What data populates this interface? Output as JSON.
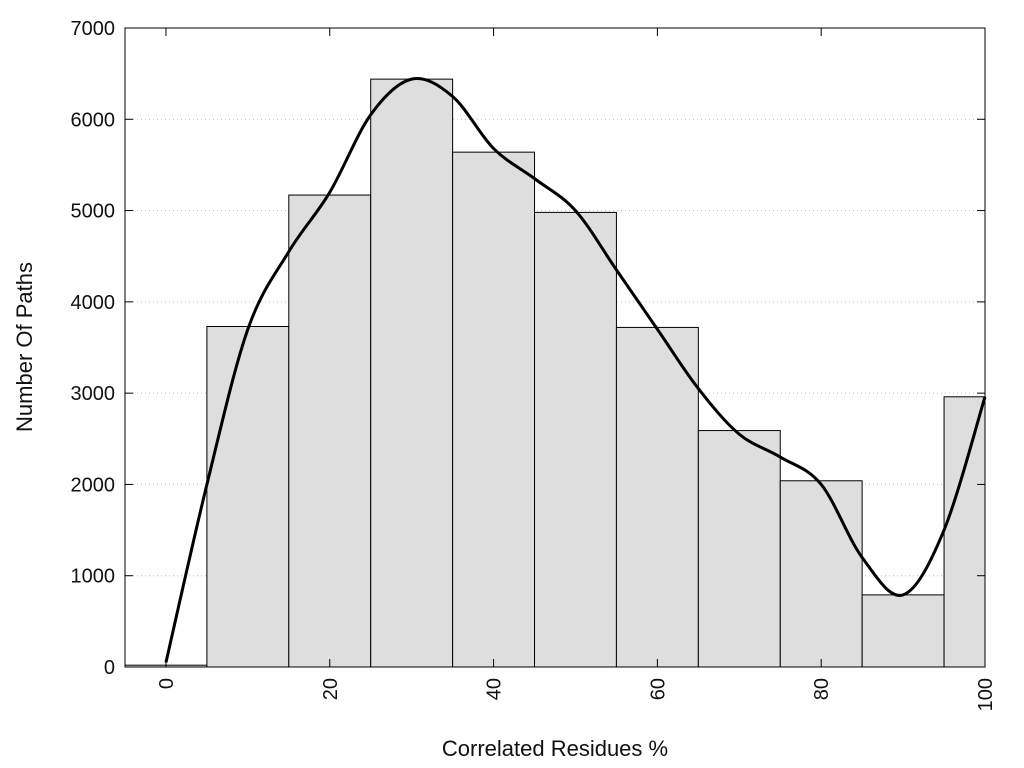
{
  "chart_data": {
    "type": "bar",
    "title": "",
    "xlabel": "Correlated Residues %",
    "ylabel": "Number Of Paths",
    "xlim": [
      -5,
      100
    ],
    "ylim": [
      0,
      7000
    ],
    "x_ticks": [
      0,
      20,
      40,
      60,
      80,
      100
    ],
    "y_ticks": [
      0,
      1000,
      2000,
      3000,
      4000,
      5000,
      6000,
      7000
    ],
    "grid": "horizontal-dotted",
    "bar_color": "#dedede",
    "bars": [
      {
        "x0": -5,
        "x1": 5,
        "value": 20
      },
      {
        "x0": 5,
        "x1": 15,
        "value": 3730
      },
      {
        "x0": 15,
        "x1": 25,
        "value": 5170
      },
      {
        "x0": 25,
        "x1": 35,
        "value": 6440
      },
      {
        "x0": 35,
        "x1": 45,
        "value": 5640
      },
      {
        "x0": 45,
        "x1": 55,
        "value": 4980
      },
      {
        "x0": 55,
        "x1": 65,
        "value": 3720
      },
      {
        "x0": 65,
        "x1": 75,
        "value": 2590
      },
      {
        "x0": 75,
        "x1": 85,
        "value": 2040
      },
      {
        "x0": 85,
        "x1": 95,
        "value": 790
      },
      {
        "x0": 95,
        "x1": 100,
        "value": 2960
      }
    ],
    "smooth_curve": {
      "x": [
        0,
        5,
        10,
        15,
        20,
        25,
        30,
        35,
        40,
        45,
        50,
        55,
        60,
        65,
        70,
        75,
        80,
        85,
        90,
        95,
        100
      ],
      "y": [
        50,
        2000,
        3700,
        4550,
        5200,
        6050,
        6440,
        6250,
        5680,
        5350,
        5000,
        4350,
        3700,
        3050,
        2550,
        2300,
        2000,
        1200,
        790,
        1500,
        2960
      ]
    }
  }
}
